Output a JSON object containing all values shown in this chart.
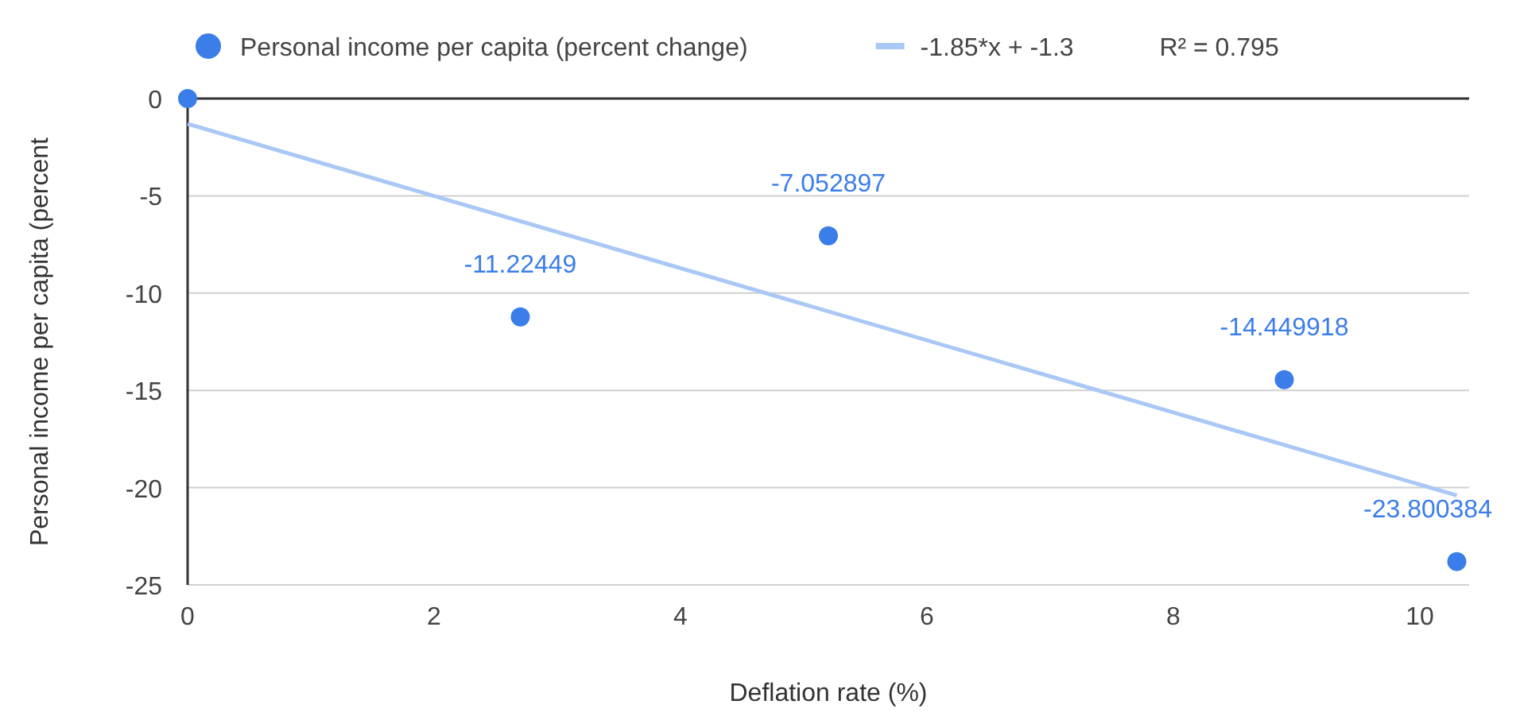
{
  "chart_data": {
    "type": "scatter",
    "xlabel": "Deflation rate (%)",
    "ylabel": "Personal income per capita (percent",
    "xlim": [
      0,
      10.4
    ],
    "xticks": [
      0,
      2,
      4,
      6,
      8,
      10
    ],
    "ylim": [
      -25,
      0
    ],
    "yticks": [
      0,
      -5,
      -10,
      -15,
      -20,
      -25
    ],
    "grid": "y",
    "legend": "top",
    "annotations": [
      "R² = 0.795"
    ],
    "series": [
      {
        "name": "Personal income per capita (percent change)",
        "marker": "circle",
        "color": "#3b7de9",
        "x": [
          0,
          2.7,
          5.2,
          8.9,
          10.3
        ],
        "values": [
          0,
          -11.22449,
          -7.052897,
          -14.449918,
          -23.800384
        ],
        "value_labels": [
          null,
          "-11.22449",
          "-7.052897",
          "-14.449918",
          "-23.800384"
        ]
      },
      {
        "name": "-1.85*x + -1.3",
        "type": "line",
        "marker": "none",
        "color": "#a9c8f5",
        "x": [
          0,
          10.3
        ],
        "values": [
          -1.3,
          -20.4
        ]
      }
    ]
  }
}
